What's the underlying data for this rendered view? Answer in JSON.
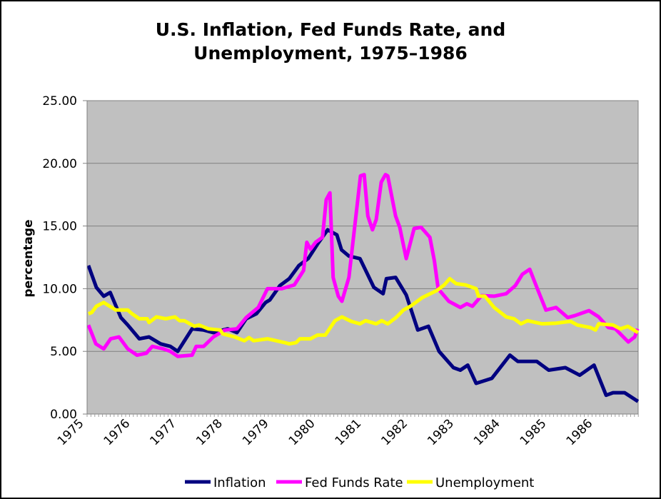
{
  "chart_data": {
    "type": "line",
    "title": [
      "U.S. Inflation, Fed Funds Rate, and",
      "Unemployment, 1975–1986"
    ],
    "xlabel": "",
    "ylabel": "percentage",
    "xlim": [
      1975,
      1986.92
    ],
    "ylim": [
      0,
      25
    ],
    "x_ticks": [
      "1975",
      "1976",
      "1977",
      "1978",
      "1979",
      "1980",
      "1981",
      "1982",
      "1983",
      "1984",
      "1985",
      "1986"
    ],
    "y_ticks": [
      "0.00",
      "5.00",
      "10.00",
      "15.00",
      "20.00",
      "25.00"
    ],
    "grid": true,
    "legend": "bottom",
    "plot_background": "#c0c0c0",
    "series": [
      {
        "name": "Inflation",
        "color": "#000080",
        "x": [
          1975.03,
          1975.2,
          1975.36,
          1975.5,
          1975.73,
          1975.88,
          1976.13,
          1976.34,
          1976.59,
          1976.8,
          1976.96,
          1977.27,
          1977.52,
          1977.73,
          1978.04,
          1978.24,
          1978.44,
          1978.66,
          1978.86,
          1978.95,
          1979.17,
          1979.37,
          1979.58,
          1979.78,
          1979.98,
          1980.2,
          1980.4,
          1980.5,
          1980.66,
          1980.9,
          1981.2,
          1981.4,
          1981.47,
          1981.67,
          1981.9,
          1982.15,
          1982.38,
          1982.61,
          1982.92,
          1983.07,
          1983.23,
          1983.41,
          1983.75,
          1984.14,
          1984.31,
          1984.72,
          1984.98,
          1985.34,
          1985.65,
          1985.96,
          1986.22,
          1986.37,
          1986.62,
          1986.91
        ],
        "y": [
          11.85,
          10.1,
          9.4,
          9.7,
          7.7,
          7.1,
          6.0,
          6.15,
          5.6,
          5.4,
          5.0,
          6.8,
          6.7,
          6.5,
          6.8,
          6.5,
          7.6,
          8.0,
          8.9,
          9.1,
          10.25,
          10.8,
          11.85,
          12.4,
          13.55,
          14.7,
          14.3,
          13.1,
          12.6,
          12.4,
          10.1,
          9.6,
          10.8,
          10.9,
          9.5,
          6.7,
          7.0,
          5.0,
          3.7,
          3.5,
          3.9,
          2.45,
          2.85,
          4.7,
          4.2,
          4.2,
          3.5,
          3.7,
          3.1,
          3.9,
          1.5,
          1.7,
          1.7,
          1.0
        ]
      },
      {
        "name": "Fed Funds Rate",
        "color": "#ff00ff",
        "x": [
          1975.03,
          1975.19,
          1975.36,
          1975.51,
          1975.69,
          1975.88,
          1976.08,
          1976.28,
          1976.41,
          1976.65,
          1976.8,
          1976.96,
          1977.27,
          1977.36,
          1977.52,
          1977.73,
          1977.98,
          1978.24,
          1978.44,
          1978.7,
          1978.9,
          1979.21,
          1979.48,
          1979.68,
          1979.75,
          1979.83,
          1979.94,
          1980.09,
          1980.17,
          1980.25,
          1980.32,
          1980.43,
          1980.51,
          1980.66,
          1980.91,
          1980.99,
          1981.07,
          1981.17,
          1981.25,
          1981.36,
          1981.45,
          1981.5,
          1981.67,
          1981.76,
          1981.9,
          1982.07,
          1982.22,
          1982.41,
          1982.51,
          1982.59,
          1982.82,
          1983.07,
          1983.21,
          1983.33,
          1983.53,
          1983.8,
          1984.06,
          1984.26,
          1984.41,
          1984.57,
          1984.75,
          1984.92,
          1985.14,
          1985.39,
          1985.54,
          1985.85,
          1986.06,
          1986.27,
          1986.42,
          1986.7,
          1986.84,
          1986.9
        ],
        "y": [
          7.1,
          5.6,
          5.2,
          6.0,
          6.15,
          5.2,
          4.7,
          4.85,
          5.4,
          5.2,
          5.0,
          4.6,
          4.7,
          5.4,
          5.4,
          6.15,
          6.7,
          6.8,
          7.7,
          8.5,
          10.0,
          10.0,
          10.3,
          11.45,
          13.7,
          13.15,
          13.7,
          14.1,
          17.1,
          17.65,
          10.9,
          9.4,
          9.0,
          10.9,
          19.0,
          19.1,
          15.8,
          14.7,
          15.5,
          18.5,
          19.1,
          19.0,
          15.8,
          14.9,
          12.4,
          14.8,
          14.9,
          14.1,
          12.2,
          10.0,
          9.0,
          8.5,
          8.8,
          8.6,
          9.45,
          9.4,
          9.6,
          10.25,
          11.15,
          11.55,
          9.85,
          8.3,
          8.5,
          7.7,
          7.85,
          8.25,
          7.75,
          6.9,
          6.8,
          5.75,
          6.15,
          6.8
        ]
      },
      {
        "name": "Unemployment",
        "color": "#ffff00",
        "x": [
          1975.03,
          1975.1,
          1975.2,
          1975.36,
          1975.62,
          1975.88,
          1975.97,
          1976.13,
          1976.3,
          1976.34,
          1976.5,
          1976.7,
          1976.9,
          1977.0,
          1977.1,
          1977.32,
          1977.42,
          1977.62,
          1977.88,
          1977.93,
          1978.19,
          1978.4,
          1978.5,
          1978.6,
          1978.9,
          1979.27,
          1979.37,
          1979.52,
          1979.6,
          1979.83,
          1979.98,
          1980.15,
          1980.36,
          1980.51,
          1980.71,
          1980.9,
          1981.02,
          1981.25,
          1981.37,
          1981.5,
          1981.68,
          1981.84,
          1981.99,
          1982.25,
          1982.56,
          1982.72,
          1982.84,
          1982.98,
          1983.18,
          1983.41,
          1983.46,
          1983.6,
          1983.8,
          1984.06,
          1984.23,
          1984.38,
          1984.52,
          1984.83,
          1985.14,
          1985.45,
          1985.6,
          1985.88,
          1985.99,
          1986.06,
          1986.37,
          1986.53,
          1986.69,
          1986.91
        ],
        "y": [
          8.0,
          8.1,
          8.6,
          8.9,
          8.3,
          8.3,
          8.0,
          7.6,
          7.6,
          7.3,
          7.75,
          7.6,
          7.75,
          7.45,
          7.45,
          7.0,
          7.1,
          6.8,
          6.7,
          6.4,
          6.15,
          5.85,
          6.1,
          5.85,
          6.0,
          5.7,
          5.6,
          5.7,
          6.0,
          6.0,
          6.3,
          6.3,
          7.45,
          7.75,
          7.4,
          7.2,
          7.45,
          7.2,
          7.45,
          7.2,
          7.7,
          8.3,
          8.6,
          9.3,
          9.85,
          10.3,
          10.8,
          10.4,
          10.3,
          10.0,
          9.4,
          9.4,
          8.5,
          7.75,
          7.6,
          7.2,
          7.45,
          7.2,
          7.25,
          7.4,
          7.1,
          6.9,
          6.7,
          7.2,
          7.1,
          6.8,
          7.0,
          6.5
        ]
      }
    ]
  }
}
